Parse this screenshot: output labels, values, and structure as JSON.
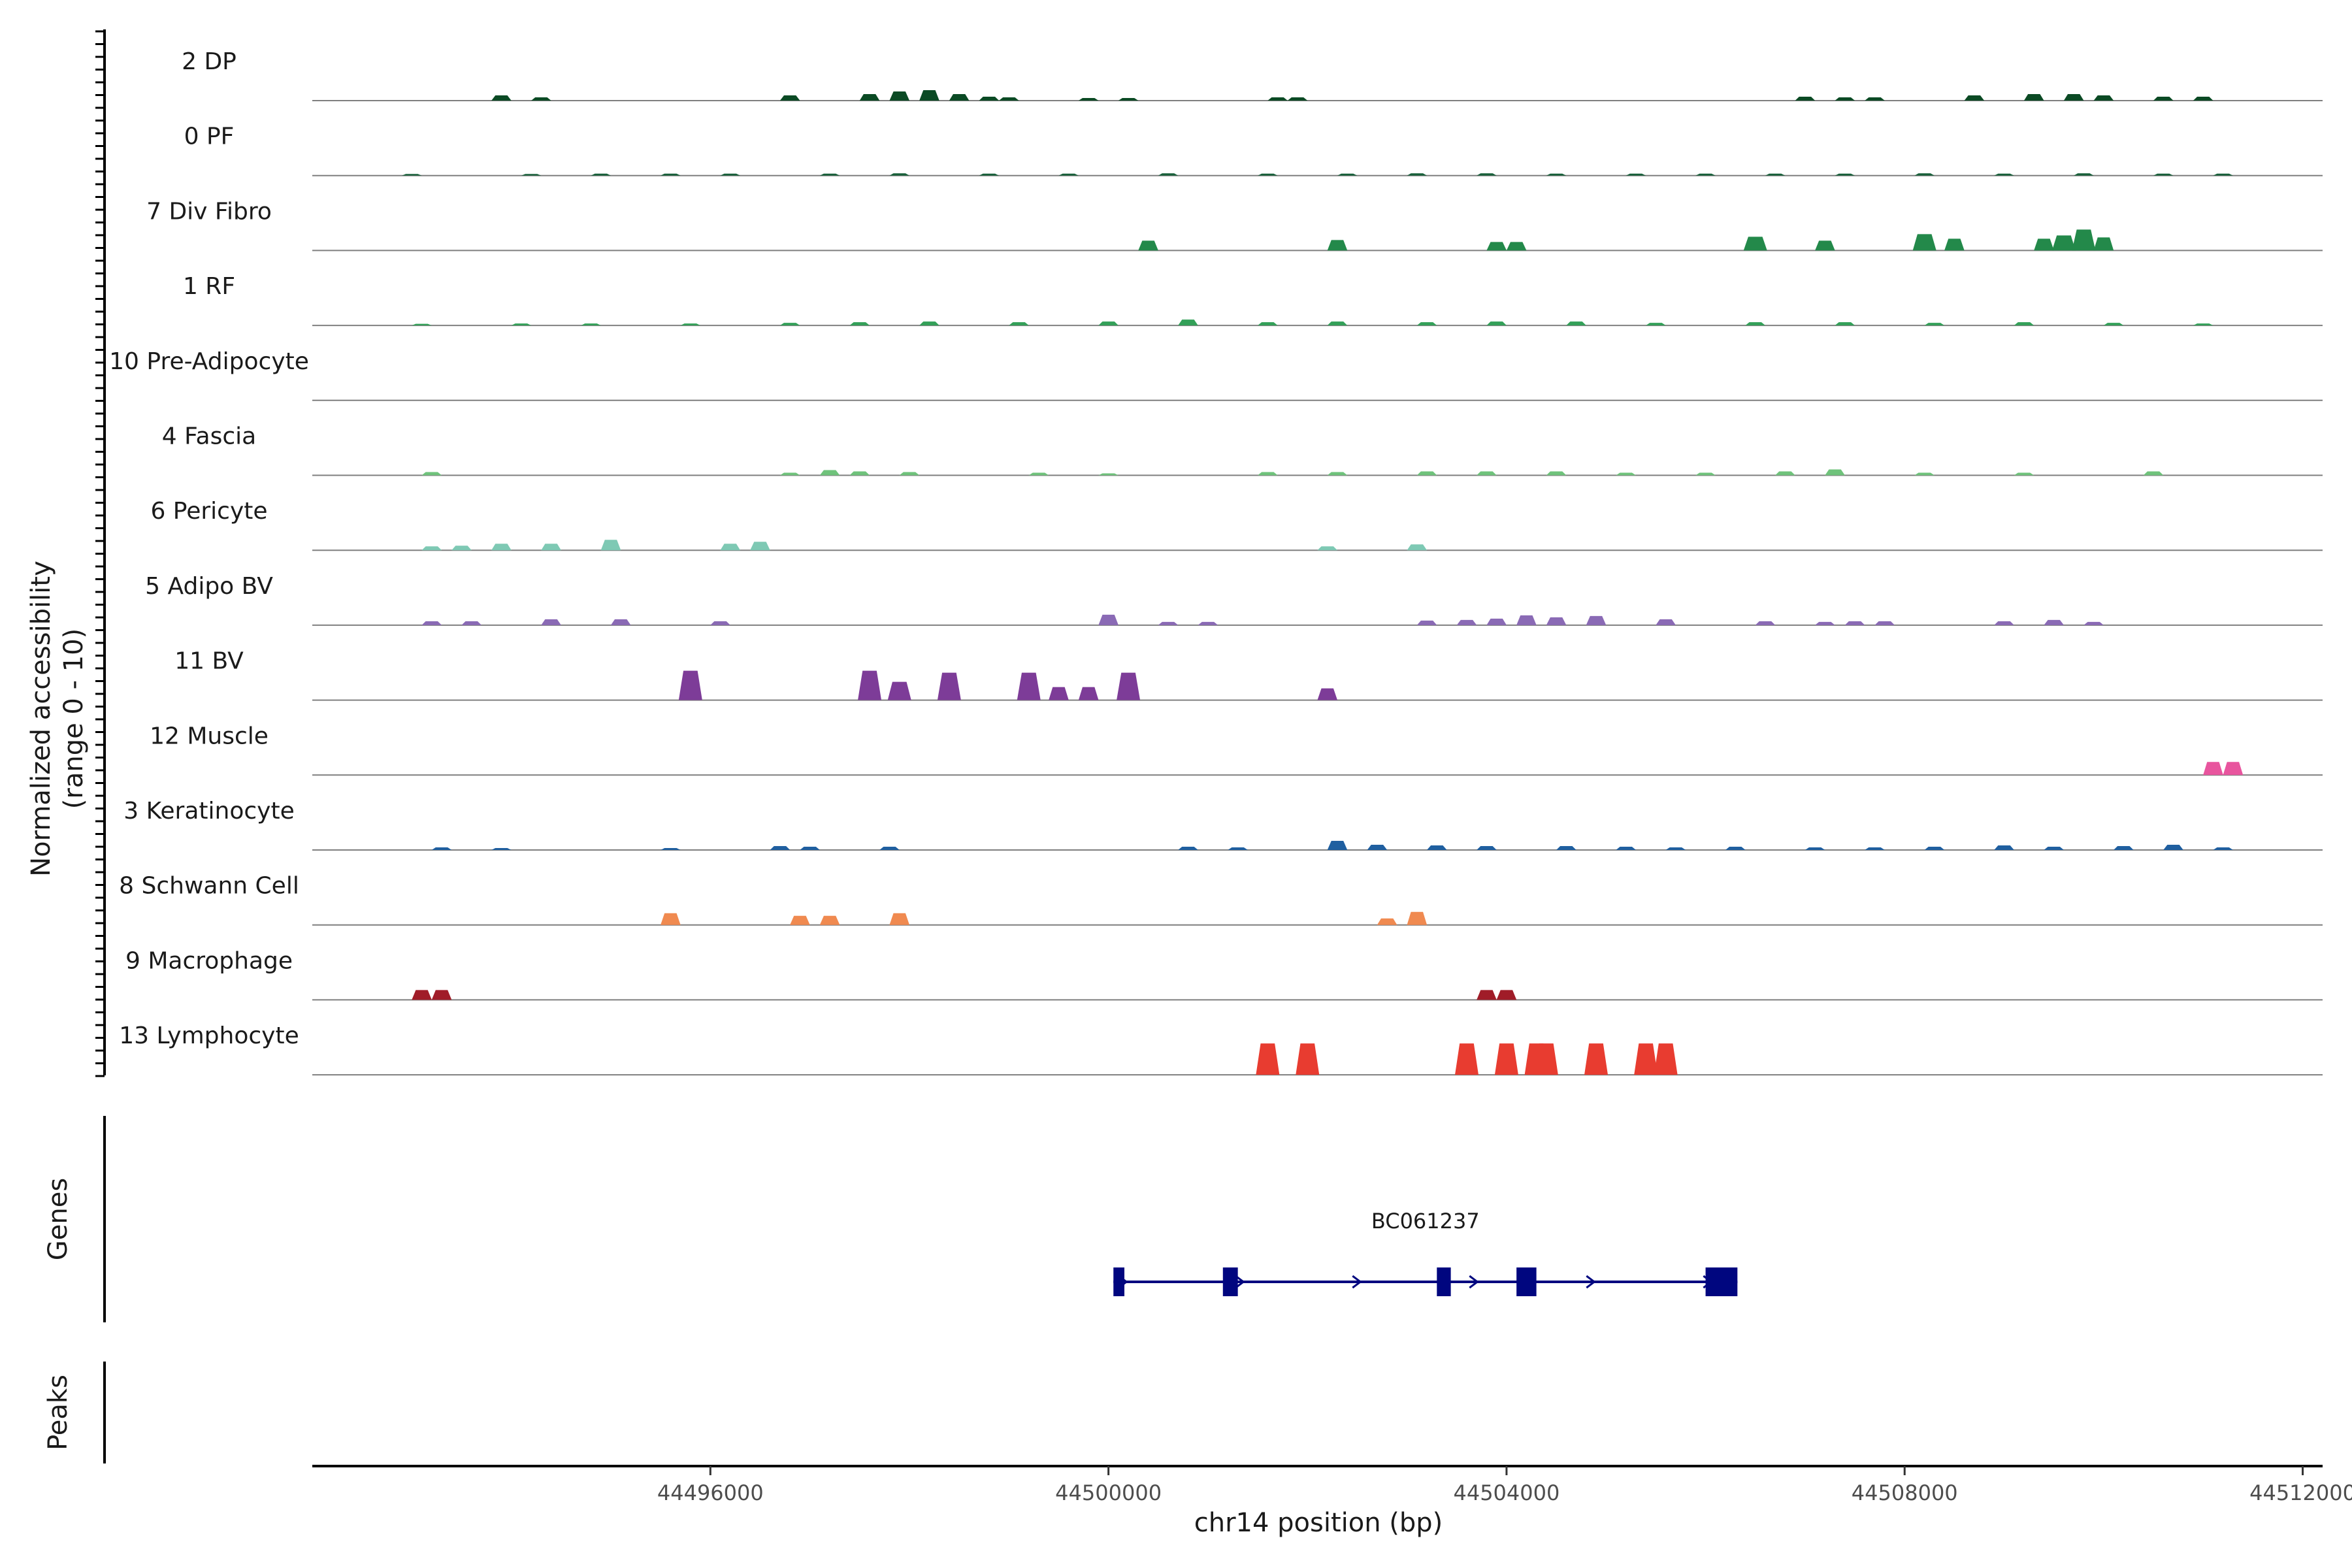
{
  "chart_data": {
    "type": "area",
    "title": "",
    "xlabel": "chr14 position (bp)",
    "ylabel": "Normalized accessibility",
    "ylabel_sub": "(range 0 - 10)",
    "xlim": [
      44492000,
      44512200
    ],
    "ylim": [
      0,
      10
    ],
    "x_ticks": [
      44496000,
      44500000,
      44504000,
      44508000,
      44512000
    ],
    "x_tick_labels": [
      "44496000",
      "44500000",
      "44504000",
      "44508000",
      "44512000"
    ],
    "side_labels": {
      "genes": "Genes",
      "peaks": "Peaks"
    },
    "series": [
      {
        "name": "2 DP",
        "color": "#0b4a24",
        "peaks": [
          [
            44493900,
            0.8
          ],
          [
            44494300,
            0.5
          ],
          [
            44496800,
            0.8
          ],
          [
            44497600,
            1.0
          ],
          [
            44497900,
            1.4
          ],
          [
            44498200,
            1.6
          ],
          [
            44498500,
            1.0
          ],
          [
            44498800,
            0.6
          ],
          [
            44499000,
            0.5
          ],
          [
            44499800,
            0.4
          ],
          [
            44500200,
            0.4
          ],
          [
            44501700,
            0.5
          ],
          [
            44501900,
            0.5
          ],
          [
            44507000,
            0.6
          ],
          [
            44507400,
            0.5
          ],
          [
            44507700,
            0.5
          ],
          [
            44508700,
            0.8
          ],
          [
            44509300,
            1.0
          ],
          [
            44509700,
            1.0
          ],
          [
            44510000,
            0.8
          ],
          [
            44510600,
            0.6
          ],
          [
            44511000,
            0.6
          ]
        ]
      },
      {
        "name": "0 PF",
        "color": "#18603a",
        "peaks": [
          [
            44493000,
            0.25
          ],
          [
            44494200,
            0.25
          ],
          [
            44494900,
            0.3
          ],
          [
            44495600,
            0.3
          ],
          [
            44496200,
            0.3
          ],
          [
            44497200,
            0.3
          ],
          [
            44497900,
            0.35
          ],
          [
            44498800,
            0.3
          ],
          [
            44499600,
            0.3
          ],
          [
            44500600,
            0.35
          ],
          [
            44501600,
            0.3
          ],
          [
            44502400,
            0.3
          ],
          [
            44503100,
            0.35
          ],
          [
            44503800,
            0.35
          ],
          [
            44504500,
            0.3
          ],
          [
            44505300,
            0.3
          ],
          [
            44506000,
            0.3
          ],
          [
            44506700,
            0.3
          ],
          [
            44507400,
            0.3
          ],
          [
            44508200,
            0.35
          ],
          [
            44509000,
            0.3
          ],
          [
            44509800,
            0.35
          ],
          [
            44510600,
            0.3
          ],
          [
            44511200,
            0.3
          ]
        ]
      },
      {
        "name": "7 Div Fibro",
        "color": "#23894a",
        "peaks": [
          [
            44500400,
            1.5
          ],
          [
            44502300,
            1.6
          ],
          [
            44503900,
            1.3
          ],
          [
            44504100,
            1.3
          ],
          [
            44506500,
            2.1
          ],
          [
            44507200,
            1.5
          ],
          [
            44508200,
            2.5
          ],
          [
            44508500,
            1.8
          ],
          [
            44509400,
            1.8
          ],
          [
            44509600,
            2.3
          ],
          [
            44509800,
            3.2
          ],
          [
            44510000,
            2.0
          ]
        ]
      },
      {
        "name": "1 RF",
        "color": "#33a058",
        "peaks": [
          [
            44493100,
            0.25
          ],
          [
            44494100,
            0.3
          ],
          [
            44494800,
            0.3
          ],
          [
            44495800,
            0.3
          ],
          [
            44496800,
            0.4
          ],
          [
            44497500,
            0.5
          ],
          [
            44498200,
            0.6
          ],
          [
            44499100,
            0.5
          ],
          [
            44500000,
            0.6
          ],
          [
            44500800,
            0.9
          ],
          [
            44501600,
            0.5
          ],
          [
            44502300,
            0.6
          ],
          [
            44503200,
            0.5
          ],
          [
            44503900,
            0.6
          ],
          [
            44504700,
            0.6
          ],
          [
            44505500,
            0.4
          ],
          [
            44506500,
            0.5
          ],
          [
            44507400,
            0.5
          ],
          [
            44508300,
            0.4
          ],
          [
            44509200,
            0.5
          ],
          [
            44510100,
            0.4
          ],
          [
            44511000,
            0.3
          ]
        ]
      },
      {
        "name": "10 Pre-Adipocyte",
        "color": "#4fb16a",
        "peaks": []
      },
      {
        "name": "4 Fascia",
        "color": "#6fc37b",
        "peaks": [
          [
            44493200,
            0.5
          ],
          [
            44496800,
            0.4
          ],
          [
            44497200,
            0.8
          ],
          [
            44497500,
            0.6
          ],
          [
            44498000,
            0.5
          ],
          [
            44499300,
            0.4
          ],
          [
            44500000,
            0.3
          ],
          [
            44501600,
            0.5
          ],
          [
            44502300,
            0.5
          ],
          [
            44503200,
            0.6
          ],
          [
            44503800,
            0.6
          ],
          [
            44504500,
            0.6
          ],
          [
            44505200,
            0.4
          ],
          [
            44506000,
            0.4
          ],
          [
            44506800,
            0.6
          ],
          [
            44507300,
            0.9
          ],
          [
            44508200,
            0.4
          ],
          [
            44509200,
            0.4
          ],
          [
            44510500,
            0.6
          ]
        ]
      },
      {
        "name": "6 Pericyte",
        "color": "#7ec9b4",
        "peaks": [
          [
            44493200,
            0.6
          ],
          [
            44493500,
            0.7
          ],
          [
            44493900,
            1.0
          ],
          [
            44494400,
            1.0
          ],
          [
            44495000,
            1.6
          ],
          [
            44496200,
            1.0
          ],
          [
            44496500,
            1.3
          ],
          [
            44502200,
            0.6
          ],
          [
            44503100,
            0.9
          ]
        ]
      },
      {
        "name": "5 Adipo BV",
        "color": "#8a6ab5",
        "peaks": [
          [
            44493200,
            0.6
          ],
          [
            44493600,
            0.6
          ],
          [
            44494400,
            0.9
          ],
          [
            44495100,
            0.9
          ],
          [
            44496100,
            0.6
          ],
          [
            44500000,
            1.6
          ],
          [
            44500600,
            0.5
          ],
          [
            44501000,
            0.5
          ],
          [
            44503200,
            0.7
          ],
          [
            44503600,
            0.8
          ],
          [
            44503900,
            1.0
          ],
          [
            44504200,
            1.5
          ],
          [
            44504500,
            1.2
          ],
          [
            44504900,
            1.4
          ],
          [
            44505600,
            0.9
          ],
          [
            44506600,
            0.6
          ],
          [
            44507200,
            0.5
          ],
          [
            44507500,
            0.6
          ],
          [
            44507800,
            0.6
          ],
          [
            44509000,
            0.6
          ],
          [
            44509500,
            0.8
          ],
          [
            44509900,
            0.5
          ]
        ]
      },
      {
        "name": "11 BV",
        "color": "#7d3c98",
        "peaks": [
          [
            44495800,
            4.5
          ],
          [
            44497600,
            4.5
          ],
          [
            44497900,
            2.8
          ],
          [
            44498400,
            4.2
          ],
          [
            44499200,
            4.2
          ],
          [
            44499500,
            2.0
          ],
          [
            44499800,
            2.0
          ],
          [
            44500200,
            4.2
          ],
          [
            44502200,
            1.8
          ]
        ]
      },
      {
        "name": "12 Muscle",
        "color": "#e8559e",
        "peaks": [
          [
            44511100,
            2.0
          ],
          [
            44511300,
            2.0
          ]
        ]
      },
      {
        "name": "3 Keratinocyte",
        "color": "#1f5fa0",
        "peaks": [
          [
            44493300,
            0.4
          ],
          [
            44493900,
            0.3
          ],
          [
            44495600,
            0.3
          ],
          [
            44496700,
            0.6
          ],
          [
            44497000,
            0.5
          ],
          [
            44497800,
            0.5
          ],
          [
            44500800,
            0.5
          ],
          [
            44501300,
            0.4
          ],
          [
            44502300,
            1.4
          ],
          [
            44502700,
            0.8
          ],
          [
            44503300,
            0.7
          ],
          [
            44503800,
            0.6
          ],
          [
            44504600,
            0.6
          ],
          [
            44505200,
            0.5
          ],
          [
            44505700,
            0.4
          ],
          [
            44506300,
            0.5
          ],
          [
            44507100,
            0.4
          ],
          [
            44507700,
            0.4
          ],
          [
            44508300,
            0.5
          ],
          [
            44509000,
            0.7
          ],
          [
            44509500,
            0.5
          ],
          [
            44510200,
            0.6
          ],
          [
            44510700,
            0.8
          ],
          [
            44511200,
            0.4
          ]
        ]
      },
      {
        "name": "8 Schwann Cell",
        "color": "#f08a50",
        "peaks": [
          [
            44495600,
            1.8
          ],
          [
            44496900,
            1.4
          ],
          [
            44497200,
            1.4
          ],
          [
            44497900,
            1.8
          ],
          [
            44502800,
            1.0
          ],
          [
            44503100,
            2.0
          ]
        ]
      },
      {
        "name": "9 Macrophage",
        "color": "#a01c28",
        "peaks": [
          [
            44493100,
            1.5
          ],
          [
            44493300,
            1.5
          ],
          [
            44503800,
            1.5
          ],
          [
            44504000,
            1.5
          ]
        ]
      },
      {
        "name": "13 Lymphocyte",
        "color": "#e83c30",
        "peaks": [
          [
            44501600,
            4.8
          ],
          [
            44502000,
            4.8
          ],
          [
            44503600,
            4.8
          ],
          [
            44504000,
            4.8
          ],
          [
            44504300,
            4.8
          ],
          [
            44504400,
            4.8
          ],
          [
            44504900,
            4.8
          ],
          [
            44505400,
            4.8
          ],
          [
            44505600,
            4.8
          ]
        ]
      }
    ],
    "genes": [
      {
        "name": "BC061237",
        "strand": "+",
        "start": 44500050,
        "end": 44506320,
        "color": "#00067f",
        "exons": [
          [
            44500050,
            44500160
          ],
          [
            44501150,
            44501300
          ],
          [
            44503300,
            44503440
          ],
          [
            44504100,
            44504300
          ],
          [
            44506000,
            44506320
          ]
        ]
      }
    ]
  }
}
